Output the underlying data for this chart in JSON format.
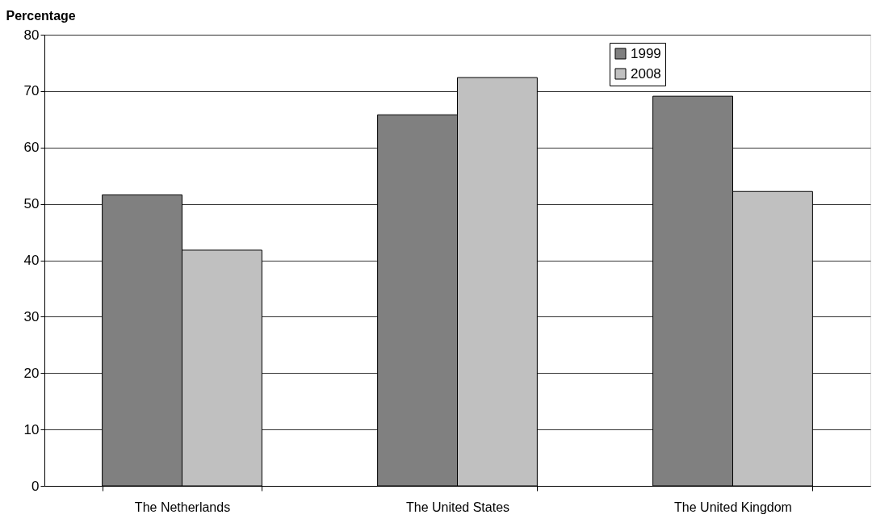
{
  "chart_data": {
    "type": "bar",
    "ylabel": "Percentage",
    "categories": [
      "The Netherlands",
      "The United States",
      "The United Kingdom"
    ],
    "series": [
      {
        "name": "1999",
        "color": "#808080",
        "values": [
          51.6,
          65.8,
          69.1
        ]
      },
      {
        "name": "2008",
        "color": "#c0c0c0",
        "values": [
          41.8,
          72.4,
          52.2
        ]
      }
    ],
    "ylim": [
      0,
      80
    ],
    "yticks": [
      0,
      10,
      20,
      30,
      40,
      50,
      60,
      70,
      80
    ],
    "grid": "y",
    "legend": "top right"
  }
}
